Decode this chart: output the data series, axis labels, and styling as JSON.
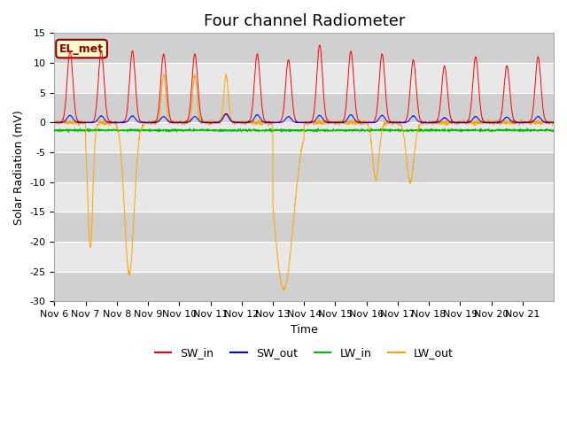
{
  "title": "Four channel Radiometer",
  "xlabel": "Time",
  "ylabel": "Solar Radiation (mV)",
  "ylim": [
    -30,
    15
  ],
  "yticks": [
    -30,
    -25,
    -20,
    -15,
    -10,
    -5,
    0,
    5,
    10,
    15
  ],
  "x_labels": [
    "Nov 6",
    "Nov 7",
    "Nov 8",
    "Nov 9",
    "Nov 10",
    "Nov 11",
    "Nov 12",
    "Nov 13",
    "Nov 14",
    "Nov 15",
    "Nov 16",
    "Nov 17",
    "Nov 18",
    "Nov 19",
    "Nov 20",
    "Nov 21"
  ],
  "annotation_text": "EL_met",
  "annotation_color": "#8B0000",
  "annotation_bg": "#FFFFCC",
  "colors": {
    "SW_in": "#FF0000",
    "SW_out": "#0000FF",
    "LW_in": "#00BB00",
    "LW_out": "#FFA500"
  },
  "legend_labels": [
    "SW_in",
    "SW_out",
    "LW_in",
    "LW_out"
  ],
  "plot_bg_color": "#F0F0F0",
  "title_fontsize": 13,
  "label_fontsize": 9,
  "tick_fontsize": 8,
  "n_days": 16,
  "sw_in_peaks": [
    12,
    12,
    12,
    11.5,
    11.5,
    1.5,
    11.5,
    10.5,
    13,
    12,
    11.5,
    10.5,
    9.5,
    11,
    9.5,
    11
  ],
  "sw_out_peaks": [
    1.2,
    1.1,
    1.1,
    1.0,
    1.0,
    1.4,
    1.3,
    1.0,
    1.2,
    1.3,
    1.2,
    1.1,
    0.8,
    1.0,
    0.9,
    1.0
  ],
  "lw_in_base": -1.3,
  "band_colors": [
    "#D0D0D0",
    "#E8E8E8"
  ]
}
